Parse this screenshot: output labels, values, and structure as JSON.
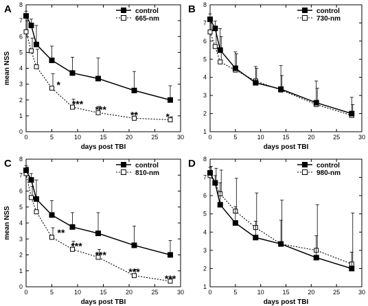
{
  "chart_data": [
    {
      "type": "line",
      "panel_label": "A",
      "xlabel": "days post TBI",
      "ylabel": "mean NSS",
      "xlim": [
        0,
        30
      ],
      "ylim": [
        0,
        8
      ],
      "xticks": [
        0,
        5,
        10,
        15,
        20,
        25,
        30
      ],
      "yticks": [
        0,
        1,
        2,
        3,
        4,
        5,
        6,
        7,
        8
      ],
      "legend_position": "top-right",
      "x": [
        0,
        1,
        2,
        5,
        9,
        14,
        21,
        28
      ],
      "series": [
        {
          "name": "control",
          "marker": "filled-square",
          "line": "solid",
          "values": [
            7.3,
            6.7,
            5.5,
            4.5,
            3.7,
            3.35,
            2.6,
            2.0
          ],
          "error": [
            0.3,
            0.4,
            1.2,
            0.9,
            1.0,
            1.3,
            1.2,
            0.9
          ]
        },
        {
          "name": "665-nm",
          "marker": "open-square",
          "line": "dotted",
          "values": [
            6.3,
            5.1,
            4.1,
            2.75,
            1.55,
            1.2,
            0.85,
            0.75
          ],
          "error": [
            0.7,
            0.8,
            1.1,
            0.9,
            0.5,
            0.4,
            0.3,
            0.2
          ]
        }
      ],
      "annotations": [
        {
          "text": "*",
          "x": 6.3,
          "y": 3.0
        },
        {
          "text": "***",
          "x": 10.0,
          "y": 1.8
        },
        {
          "text": "***",
          "x": 14.5,
          "y": 1.45
        },
        {
          "text": "**",
          "x": 21.0,
          "y": 1.1
        },
        {
          "text": "*",
          "x": 27.5,
          "y": 1.0
        }
      ]
    },
    {
      "type": "line",
      "panel_label": "B",
      "xlabel": "days post TBI",
      "ylabel": "",
      "xlim": [
        0,
        30
      ],
      "ylim": [
        1,
        8
      ],
      "xticks": [
        0,
        5,
        10,
        15,
        20,
        25,
        30
      ],
      "yticks": [
        1,
        2,
        3,
        4,
        5,
        6,
        7,
        8
      ],
      "legend_position": "top-right",
      "x": [
        0,
        1,
        2,
        5,
        9,
        14,
        21,
        28
      ],
      "series": [
        {
          "name": "control",
          "marker": "filled-square",
          "line": "solid",
          "values": [
            7.2,
            6.7,
            5.5,
            4.5,
            3.7,
            3.35,
            2.6,
            2.0
          ],
          "error": [
            0.3,
            0.4,
            1.2,
            0.9,
            0.9,
            1.3,
            1.2,
            0.9
          ]
        },
        {
          "name": "730-nm",
          "marker": "open-square",
          "line": "dotted",
          "values": [
            6.5,
            5.7,
            4.85,
            4.4,
            3.8,
            3.3,
            2.5,
            1.9
          ],
          "error": [
            0.8,
            1.0,
            1.4,
            0.9,
            0.7,
            0.8,
            0.9,
            0.6
          ]
        }
      ],
      "annotations": []
    },
    {
      "type": "line",
      "panel_label": "C",
      "xlabel": "days post TBI",
      "ylabel": "mean NSS",
      "xlim": [
        0,
        30
      ],
      "ylim": [
        0,
        8
      ],
      "xticks": [
        0,
        5,
        10,
        15,
        20,
        25,
        30
      ],
      "yticks": [
        0,
        1,
        2,
        3,
        4,
        5,
        6,
        7,
        8
      ],
      "legend_position": "top-right",
      "x": [
        0,
        1,
        2,
        5,
        9,
        14,
        21,
        28
      ],
      "series": [
        {
          "name": "control",
          "marker": "filled-square",
          "line": "solid",
          "values": [
            7.3,
            6.7,
            5.5,
            4.5,
            3.75,
            3.35,
            2.6,
            2.0
          ],
          "error": [
            0.3,
            0.4,
            1.2,
            0.9,
            0.9,
            1.3,
            1.2,
            0.9
          ]
        },
        {
          "name": "810-nm",
          "marker": "open-square",
          "line": "dotted",
          "values": [
            7.1,
            5.6,
            4.7,
            3.1,
            2.35,
            1.85,
            0.7,
            0.35
          ],
          "error": [
            0.4,
            0.7,
            0.9,
            0.6,
            0.5,
            0.5,
            0.4,
            0.2
          ]
        }
      ],
      "annotations": [
        {
          "text": "**",
          "x": 6.8,
          "y": 3.45
        },
        {
          "text": "***",
          "x": 9.8,
          "y": 2.6
        },
        {
          "text": "***",
          "x": 14.5,
          "y": 2.05
        },
        {
          "text": "***",
          "x": 21.0,
          "y": 1.0
        },
        {
          "text": "***",
          "x": 28.0,
          "y": 0.55
        }
      ]
    },
    {
      "type": "line",
      "panel_label": "D",
      "xlabel": "days post TBI",
      "ylabel": "",
      "xlim": [
        0,
        30
      ],
      "ylim": [
        1,
        8
      ],
      "xticks": [
        0,
        5,
        10,
        15,
        20,
        25,
        30
      ],
      "yticks": [
        1,
        2,
        3,
        4,
        5,
        6,
        7,
        8
      ],
      "legend_position": "top-right",
      "x": [
        0,
        1,
        2,
        5,
        9,
        14,
        21,
        28
      ],
      "series": [
        {
          "name": "control",
          "marker": "filled-square",
          "line": "solid",
          "values": [
            7.25,
            6.7,
            5.5,
            4.5,
            3.7,
            3.35,
            2.6,
            2.0
          ],
          "error": [
            0.3,
            0.4,
            1.2,
            0.9,
            0.9,
            1.3,
            1.2,
            0.9
          ]
        },
        {
          "name": "980-nm",
          "marker": "open-square",
          "line": "dotted",
          "values": [
            7.1,
            6.7,
            6.1,
            5.15,
            4.25,
            3.35,
            3.0,
            2.25
          ],
          "error": [
            0.5,
            0.8,
            1.3,
            1.8,
            1.9,
            2.4,
            2.5,
            2.8
          ]
        }
      ],
      "annotations": []
    }
  ]
}
